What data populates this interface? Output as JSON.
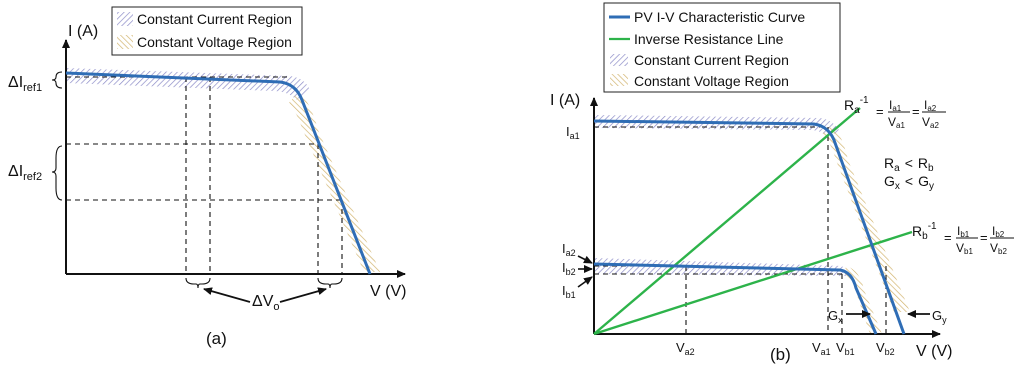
{
  "panel_a": {
    "caption": "(a)",
    "y_axis_label": "I (A)",
    "x_axis_label": "V (V)",
    "legend": [
      "Constant Current Region",
      "Constant Voltage Region"
    ],
    "delta_iref1": {
      "main": "ΔI",
      "sub": "ref1"
    },
    "delta_iref2": {
      "main": "ΔI",
      "sub": "ref2"
    },
    "delta_vo": {
      "main": "ΔV",
      "sub": "o"
    }
  },
  "panel_b": {
    "caption": "(b)",
    "y_axis_label": "I (A)",
    "x_axis_label": "V (V)",
    "legend": [
      "PV I-V Characteristic Curve",
      "Inverse Resistance Line",
      "Constant Current Region",
      "Constant Voltage Region"
    ],
    "y_ticks": {
      "ia1": {
        "main": "I",
        "sub": "a1"
      },
      "ia2": {
        "main": "I",
        "sub": "a2"
      },
      "ib2": {
        "main": "I",
        "sub": "b2"
      },
      "ib1": {
        "main": "I",
        "sub": "b1"
      }
    },
    "x_ticks": {
      "va2": {
        "main": "V",
        "sub": "a2"
      },
      "va1": {
        "main": "V",
        "sub": "a1"
      },
      "vb1": {
        "main": "V",
        "sub": "b1"
      },
      "vb2": {
        "main": "V",
        "sub": "b2"
      }
    },
    "eq_a": {
      "lhs": "R",
      "lhs_sub": "a",
      "sup": "-1",
      "eq": "=",
      "n1": "I",
      "n1s": "a1",
      "d1": "V",
      "d1s": "a1",
      "n2": "I",
      "n2s": "a2",
      "d2": "V",
      "d2s": "a2"
    },
    "eq_b": {
      "lhs": "R",
      "lhs_sub": "b",
      "sup": "-1",
      "eq": "=",
      "n1": "I",
      "n1s": "b1",
      "d1": "V",
      "d1s": "b1",
      "n2": "I",
      "n2s": "b2",
      "d2": "V",
      "d2s": "b2"
    },
    "ineq1": {
      "a": "R",
      "as": "a",
      "op": "<",
      "b": "R",
      "bs": "b"
    },
    "ineq2": {
      "a": "G",
      "as": "x",
      "op": "<",
      "b": "G",
      "bs": "y"
    },
    "gx": {
      "main": "G",
      "sub": "x"
    },
    "gy": {
      "main": "G",
      "sub": "y"
    }
  },
  "colors": {
    "curve": "#2f6db5",
    "line": "#2db34a",
    "cc_hatch": "#8c8cc8",
    "cv_hatch": "#d2b46e"
  }
}
